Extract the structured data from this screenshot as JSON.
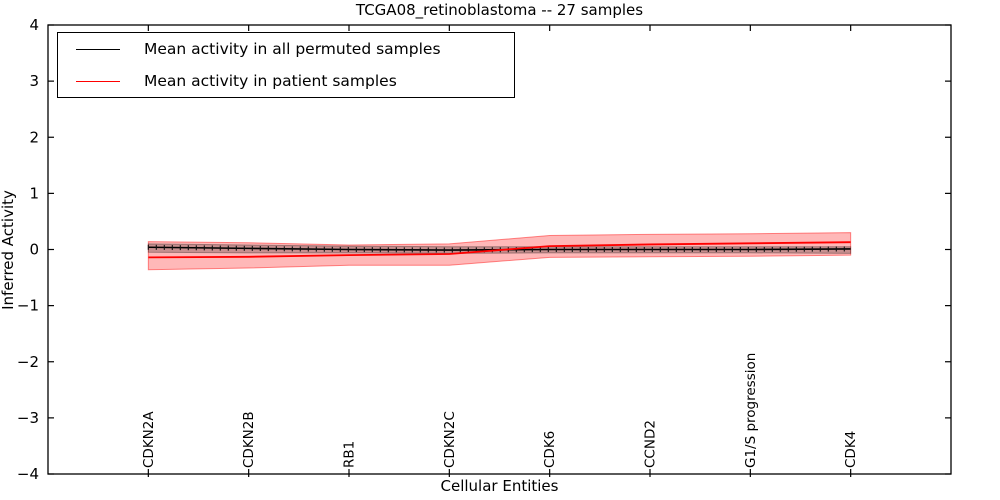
{
  "title": "TCGA08_retinoblastoma -- 27 samples",
  "legend": {
    "entries": [
      {
        "label": "Mean activity in all permuted samples",
        "color": "#000000"
      },
      {
        "label": "Mean activity in patient samples",
        "color": "#ff0000"
      }
    ]
  },
  "chart_data": {
    "type": "line",
    "title": "TCGA08_retinoblastoma -- 27 samples",
    "xlabel": "Cellular Entities",
    "ylabel": "Inferred Activity",
    "ylim": [
      -4,
      4
    ],
    "yticks": [
      -4,
      -3,
      -2,
      -1,
      0,
      1,
      2,
      3,
      4
    ],
    "grid": false,
    "legend_position": "upper left",
    "categories": [
      "CDKN2A",
      "CDKN2B",
      "RB1",
      "CDKN2C",
      "CDK6",
      "CCND2",
      "G1/S progression",
      "CDK4"
    ],
    "series": [
      {
        "name": "Mean activity in all permuted samples",
        "color": "#000000",
        "line_width": 1.6,
        "marker": "vertical-dash",
        "values": [
          0.04,
          0.02,
          0.0,
          -0.01,
          0.0,
          0.0,
          0.0,
          0.01
        ],
        "band_low": [
          -0.05,
          -0.06,
          -0.06,
          -0.07,
          -0.06,
          -0.06,
          -0.06,
          -0.07
        ],
        "band_high": [
          0.1,
          0.08,
          0.06,
          0.05,
          0.05,
          0.05,
          0.05,
          0.05
        ],
        "band_fill": "rgba(0,0,0,0.22)",
        "band_edge": "rgba(0,0,0,0.30)"
      },
      {
        "name": "Mean activity in patient samples",
        "color": "#ff0000",
        "line_width": 1.8,
        "marker": "none",
        "values": [
          -0.14,
          -0.13,
          -0.1,
          -0.08,
          0.06,
          0.09,
          0.11,
          0.13
        ],
        "band_low": [
          -0.36,
          -0.33,
          -0.28,
          -0.28,
          -0.14,
          -0.13,
          -0.12,
          -0.1
        ],
        "band_high": [
          0.14,
          0.12,
          0.08,
          0.1,
          0.25,
          0.27,
          0.28,
          0.3
        ],
        "band_fill": "rgba(255,0,0,0.28)",
        "band_edge": "rgba(255,0,0,0.45)"
      }
    ]
  }
}
